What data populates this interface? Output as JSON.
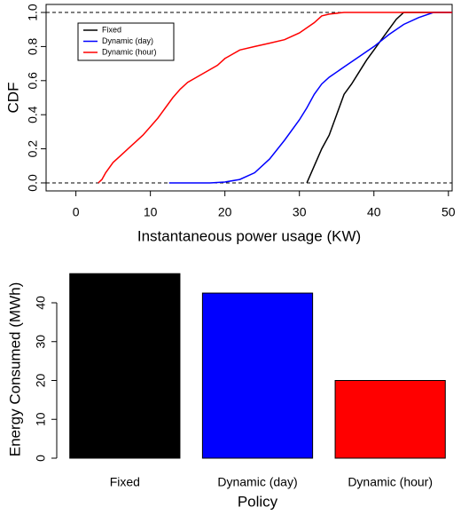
{
  "chart_data": [
    {
      "type": "line",
      "xlabel": "Instantaneous power usage (KW)",
      "ylabel": "CDF",
      "xlim": [
        -4,
        50.5
      ],
      "ylim": [
        -0.047,
        1.047
      ],
      "xticks": [
        0,
        10,
        20,
        30,
        40,
        50
      ],
      "yticks": [
        {
          "value": 0,
          "label": "0.0"
        },
        0.2,
        0.4,
        0.6,
        0.8,
        {
          "value": 1,
          "label": "1.0"
        }
      ],
      "hlines": [
        0,
        1
      ],
      "legend": "topleft",
      "series": [
        {
          "name": "Fixed",
          "color": "#000000",
          "x": [
            31,
            31.5,
            32,
            33,
            34,
            35,
            36,
            37,
            38,
            39,
            40,
            41,
            42,
            43,
            44,
            50.5
          ],
          "values": [
            0,
            0.05,
            0.1,
            0.2,
            0.28,
            0.4,
            0.52,
            0.58,
            0.65,
            0.72,
            0.78,
            0.84,
            0.9,
            0.96,
            1,
            1
          ]
        },
        {
          "name": "Dynamic (day)",
          "color": "#0000ff",
          "x": [
            12.5,
            18,
            20,
            22,
            24,
            26,
            28,
            30,
            31,
            32,
            33,
            34,
            36,
            38,
            40,
            42,
            44,
            46,
            48,
            50.5
          ],
          "values": [
            0,
            0,
            0.005,
            0.02,
            0.06,
            0.14,
            0.25,
            0.37,
            0.44,
            0.52,
            0.58,
            0.62,
            0.68,
            0.74,
            0.8,
            0.87,
            0.93,
            0.97,
            1,
            1
          ]
        },
        {
          "name": "Dynamic (hour)",
          "color": "#ff0000",
          "x": [
            3,
            3.5,
            4,
            5,
            6,
            7,
            8,
            9,
            10,
            11,
            12,
            13,
            14,
            15,
            17,
            19,
            20,
            22,
            24,
            26,
            28,
            30,
            32,
            33,
            34,
            36,
            50.5
          ],
          "values": [
            0,
            0.02,
            0.06,
            0.12,
            0.16,
            0.2,
            0.24,
            0.28,
            0.33,
            0.38,
            0.44,
            0.5,
            0.55,
            0.59,
            0.64,
            0.69,
            0.73,
            0.78,
            0.8,
            0.82,
            0.84,
            0.88,
            0.94,
            0.98,
            0.99,
            1,
            1
          ]
        }
      ]
    },
    {
      "type": "bar",
      "xlabel": "Policy",
      "ylabel": "Energy Consumed (MWh)",
      "categories": [
        "Fixed",
        "Dynamic (day)",
        "Dynamic (hour)"
      ],
      "values": [
        47.5,
        42.5,
        20
      ],
      "colors": [
        "#000000",
        "#0000ff",
        "#ff0000"
      ],
      "ylim": [
        0,
        48
      ],
      "yticks": [
        0,
        10,
        20,
        30,
        40
      ]
    }
  ]
}
